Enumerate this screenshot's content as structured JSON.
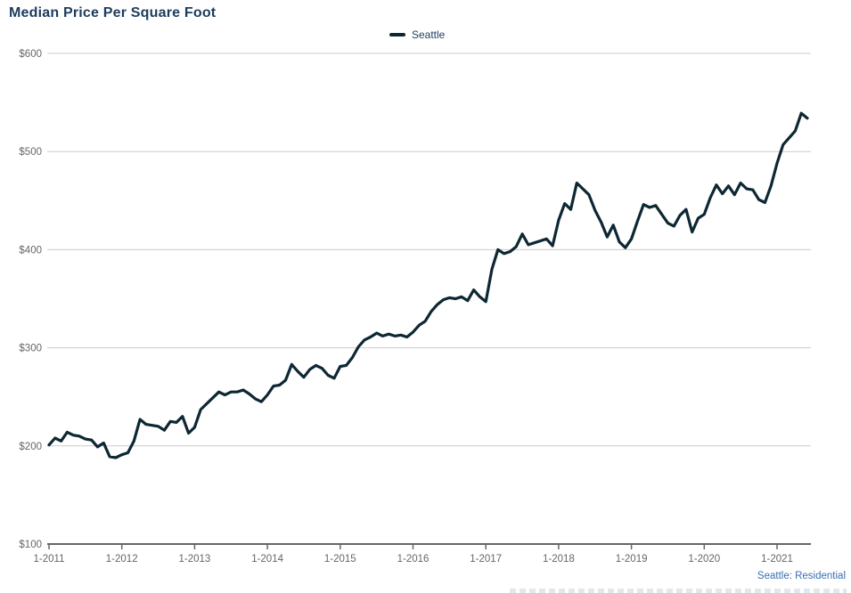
{
  "title": "Median Price Per Square Foot",
  "legend": {
    "label": "Seattle"
  },
  "footer": {
    "source_label": "Seattle: Residential"
  },
  "colors": {
    "title_text": "#1c3c5e",
    "line": "#0d2733",
    "axis_labels": "#666666",
    "gridline": "#cccccc",
    "axis_line": "#666666",
    "source_text": "#3a6eb5"
  },
  "chart_data": {
    "type": "line",
    "title": "Median Price Per Square Foot",
    "x_frequency": "monthly",
    "x_range": [
      "1-2011",
      "6-2021"
    ],
    "x_tick_labels": [
      "1-2011",
      "1-2012",
      "1-2013",
      "1-2014",
      "1-2015",
      "1-2016",
      "1-2017",
      "1-2018",
      "1-2019",
      "1-2020",
      "1-2021"
    ],
    "y_ticks": [
      100,
      200,
      300,
      400,
      500,
      600
    ],
    "y_tick_prefix": "$",
    "ylim": [
      100,
      600
    ],
    "grid": true,
    "legend_position": "top-center",
    "series": [
      {
        "name": "Seattle",
        "color": "#0d2733",
        "values": [
          201,
          208,
          205,
          214,
          211,
          210,
          207,
          206,
          199,
          203,
          189,
          188,
          191,
          193,
          205,
          227,
          222,
          221,
          220,
          216,
          225,
          224,
          230,
          213,
          219,
          237,
          243,
          249,
          255,
          252,
          255,
          255,
          257,
          253,
          248,
          245,
          252,
          261,
          262,
          267,
          283,
          276,
          270,
          278,
          282,
          279,
          272,
          269,
          281,
          282,
          290,
          301,
          308,
          311,
          315,
          312,
          314,
          312,
          313,
          311,
          316,
          323,
          327,
          337,
          344,
          349,
          351,
          350,
          352,
          348,
          359,
          352,
          347,
          380,
          400,
          396,
          398,
          403,
          416,
          405,
          407,
          409,
          411,
          404,
          430,
          447,
          441,
          468,
          462,
          456,
          440,
          428,
          413,
          425,
          408,
          402,
          411,
          429,
          446,
          443,
          445,
          436,
          427,
          424,
          435,
          441,
          418,
          432,
          436,
          453,
          466,
          457,
          465,
          456,
          468,
          462,
          461,
          451,
          448,
          465,
          488,
          507,
          514,
          521,
          539,
          534
        ]
      }
    ]
  }
}
